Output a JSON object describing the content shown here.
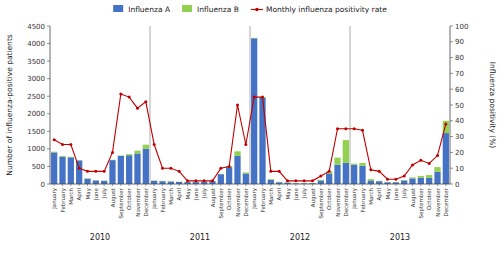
{
  "chart_data": {
    "type": "bar",
    "stacked": true,
    "categories": [
      "January",
      "February",
      "March",
      "April",
      "May",
      "June",
      "July",
      "August",
      "September",
      "October",
      "November",
      "December",
      "January",
      "February",
      "March",
      "April",
      "May",
      "June",
      "July",
      "August",
      "September",
      "October",
      "November",
      "December",
      "January",
      "February",
      "March",
      "April",
      "May",
      "June",
      "July",
      "August",
      "September",
      "October",
      "November",
      "December",
      "January",
      "February",
      "March",
      "April",
      "May",
      "June",
      "July",
      "August",
      "September",
      "October",
      "November",
      "December"
    ],
    "series": [
      {
        "name": "Influenza A",
        "color": "#4472C4",
        "values": [
          900,
          780,
          760,
          670,
          150,
          100,
          90,
          680,
          800,
          820,
          870,
          1000,
          90,
          80,
          70,
          60,
          55,
          55,
          60,
          80,
          280,
          480,
          800,
          300,
          4150,
          2450,
          120,
          50,
          40,
          20,
          20,
          25,
          100,
          300,
          550,
          600,
          550,
          520,
          100,
          80,
          50,
          50,
          100,
          160,
          180,
          175,
          350,
          1450
        ]
      },
      {
        "name": "Influenza B",
        "color": "#92D050",
        "values": [
          20,
          20,
          15,
          10,
          10,
          5,
          5,
          10,
          10,
          30,
          80,
          120,
          10,
          10,
          10,
          5,
          5,
          5,
          5,
          5,
          10,
          30,
          130,
          30,
          10,
          30,
          20,
          10,
          5,
          5,
          5,
          5,
          20,
          60,
          200,
          650,
          30,
          80,
          40,
          10,
          5,
          5,
          10,
          30,
          50,
          80,
          130,
          350
        ]
      },
      {
        "name": "Monthly influenza positivity rate",
        "type": "line",
        "axis": "y2",
        "color": "#C00000",
        "marker": "circle",
        "values": [
          28,
          25,
          25,
          10,
          8,
          8,
          8,
          20,
          57,
          55,
          48,
          52,
          25,
          10,
          10,
          8,
          2,
          2,
          2,
          2,
          10,
          11,
          50,
          25,
          55,
          55,
          8,
          8,
          2,
          2,
          2,
          2,
          5,
          8,
          35,
          35,
          35,
          34,
          9,
          8,
          3,
          3,
          5,
          12,
          15,
          13,
          18,
          38
        ]
      }
    ],
    "ylabel": "Number of influenza-positive patients",
    "y2label": "Influenza positivity (%)",
    "ylim": [
      0,
      4500
    ],
    "yticks": [
      0,
      500,
      1000,
      1500,
      2000,
      2500,
      3000,
      3500,
      4000,
      4500
    ],
    "y2lim": [
      0,
      100
    ],
    "y2ticks": [
      0,
      10,
      20,
      30,
      40,
      50,
      60,
      70,
      80,
      90,
      100
    ],
    "annotations": [
      {
        "text": "2010"
      },
      {
        "text": "2011"
      },
      {
        "text": "2012"
      },
      {
        "text": "2013"
      }
    ],
    "grid": false,
    "legend": "top"
  }
}
